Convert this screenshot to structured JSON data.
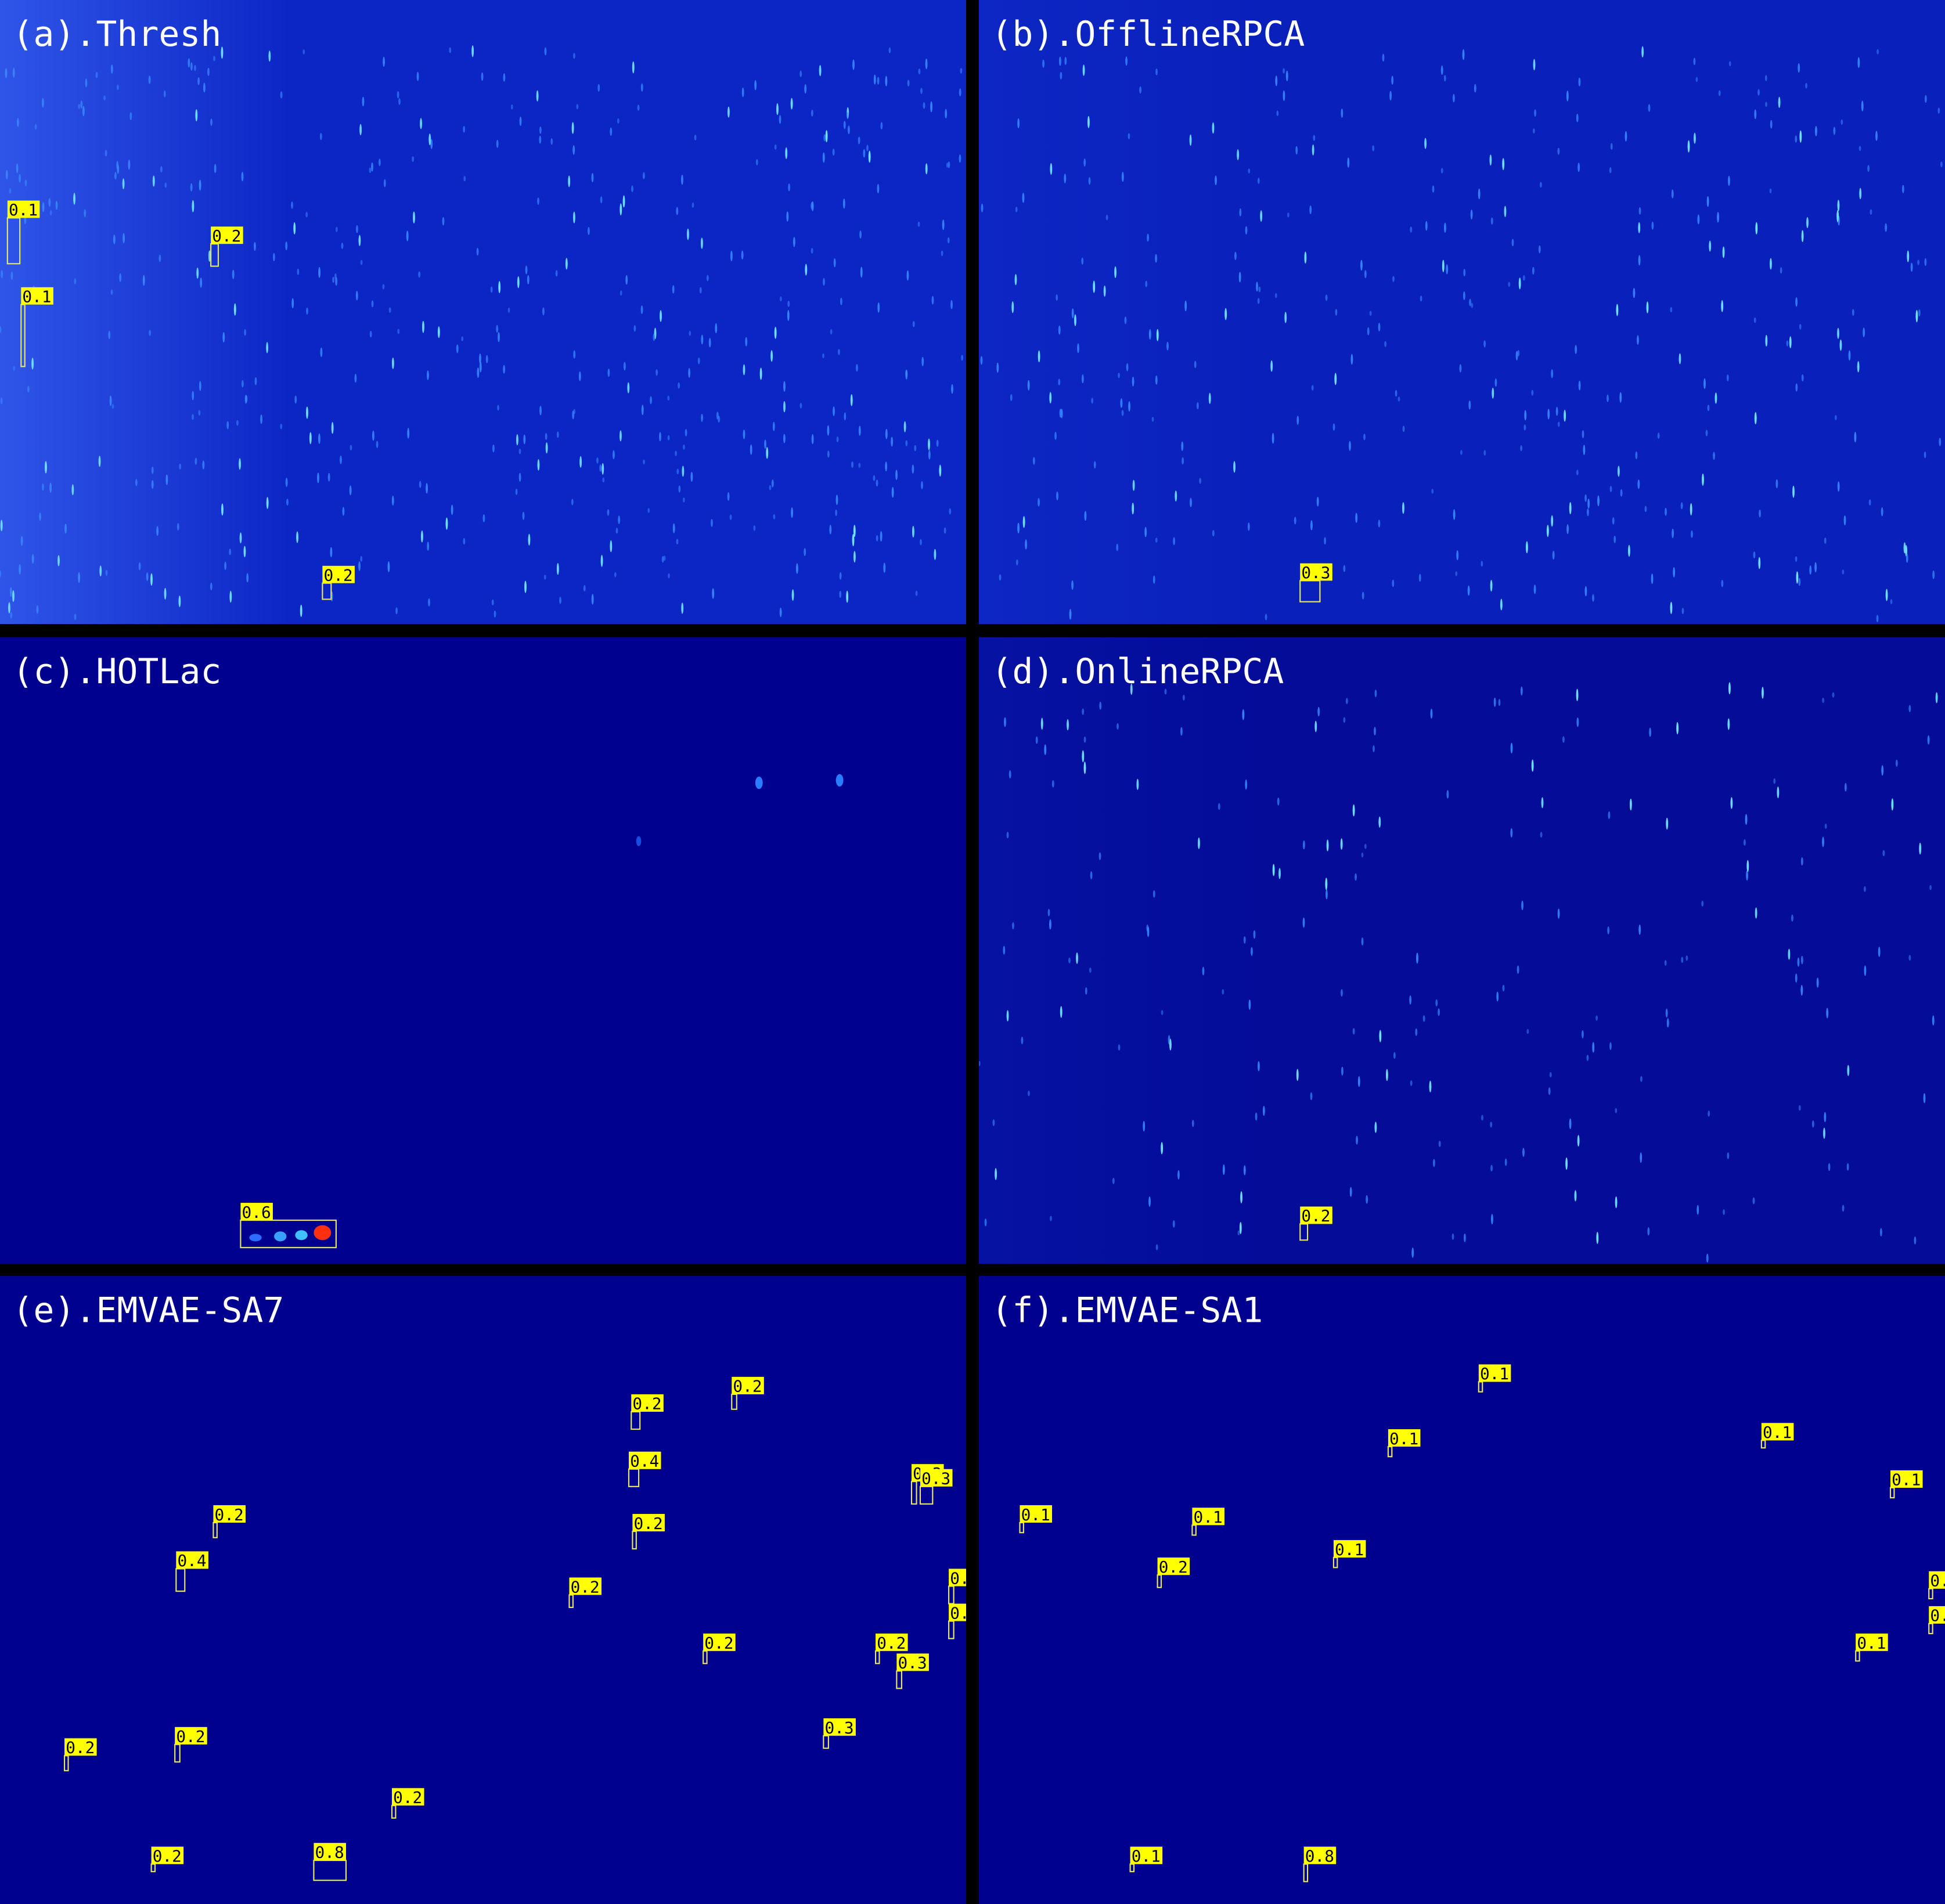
{
  "panels": [
    {
      "title": "(a).Thresh",
      "detections": [
        "0.1",
        "0.2",
        "0.1",
        "0.2"
      ]
    },
    {
      "title": "(b).OfflineRPCA",
      "detections": [
        "0.3"
      ]
    },
    {
      "title": "(c).HOTLac",
      "detections": [
        "0.6"
      ]
    },
    {
      "title": "(d).OnlineRPCA",
      "detections": [
        "0.2"
      ]
    },
    {
      "title": "(e).EMVAE-SA7",
      "detections": [
        "0.2",
        "0.2",
        "0.4",
        "0.3",
        "0.3",
        "0.2",
        "0.2",
        "0.4",
        "0.",
        "0.2",
        "0.",
        "0.2",
        "0.2",
        "0.3",
        "0.3",
        "0.2",
        "0.2",
        "0.2",
        "0.2",
        "0.8"
      ]
    },
    {
      "title": "(f).EMVAE-SA1",
      "detections": [
        "0.1",
        "0.1",
        "0.1",
        "0.1",
        "0.1",
        "0.1",
        "0.1",
        "0.2",
        "0.",
        "0.",
        "0.1",
        "0.1",
        "0.8"
      ]
    }
  ]
}
